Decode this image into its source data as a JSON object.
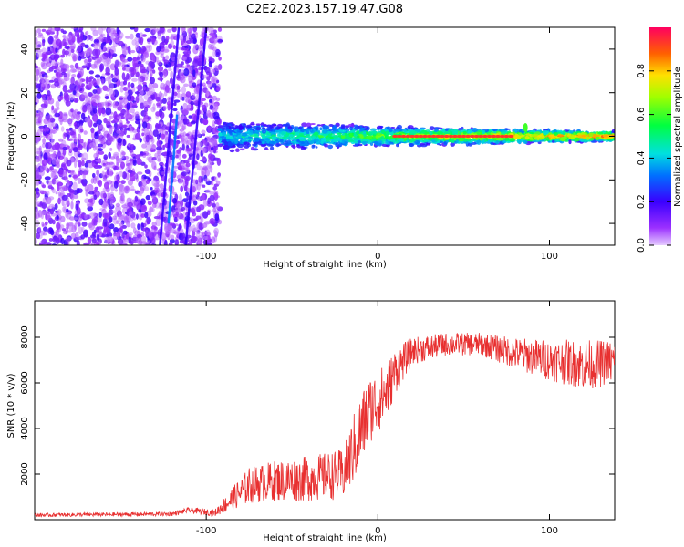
{
  "figure_title": "C2E2.2023.157.19.47.G08",
  "colors": {
    "snr_line": "#e83030",
    "axes": "#000000"
  },
  "chart_data": [
    {
      "type": "heatmap",
      "title": "",
      "xlabel": "Height of straight line (km)",
      "ylabel": "Frequency (Hz)",
      "xlim": [
        -200,
        138
      ],
      "ylim": [
        -50,
        50
      ],
      "xticks": [
        -100,
        0,
        100
      ],
      "yticks": [
        -40,
        -20,
        0,
        20,
        40
      ],
      "colormap": "rainbow (purple → red)",
      "colorbar": {
        "label": "Normalized spectral amplitude",
        "ticks": [
          0.0,
          0.2,
          0.4,
          0.6,
          0.8
        ],
        "range": [
          0,
          1
        ]
      },
      "features": {
        "noise_region_x": [
          -200,
          -92
        ],
        "signal_region_x": [
          -92,
          138
        ],
        "signal_center_frequency": 0,
        "peak_near_x": 86,
        "peak_frequency": 8
      }
    },
    {
      "type": "line",
      "title": "",
      "xlabel": "Height of straight line (km)",
      "ylabel": "SNR (10 * v/v)",
      "xlim": [
        -200,
        138
      ],
      "ylim": [
        0,
        9600
      ],
      "xticks": [
        -100,
        0,
        100
      ],
      "yticks": [
        2000,
        4000,
        6000,
        8000
      ],
      "series": [
        {
          "envelope_x": [
            -200,
            -120,
            -110,
            -95,
            -85,
            -75,
            -60,
            -40,
            -20,
            -12,
            -5,
            5,
            10,
            20,
            40,
            60,
            80,
            100,
            120,
            138
          ],
          "envelope_mean": [
            200,
            250,
            420,
            300,
            900,
            1500,
            1700,
            1800,
            2000,
            3500,
            4800,
            5600,
            6500,
            7400,
            7700,
            7700,
            7300,
            7000,
            6800,
            6900
          ],
          "envelope_spread": [
            80,
            90,
            120,
            150,
            500,
            800,
            900,
            1000,
            1100,
            1700,
            1500,
            1300,
            1000,
            600,
            500,
            500,
            700,
            900,
            1100,
            1000
          ]
        }
      ]
    }
  ]
}
